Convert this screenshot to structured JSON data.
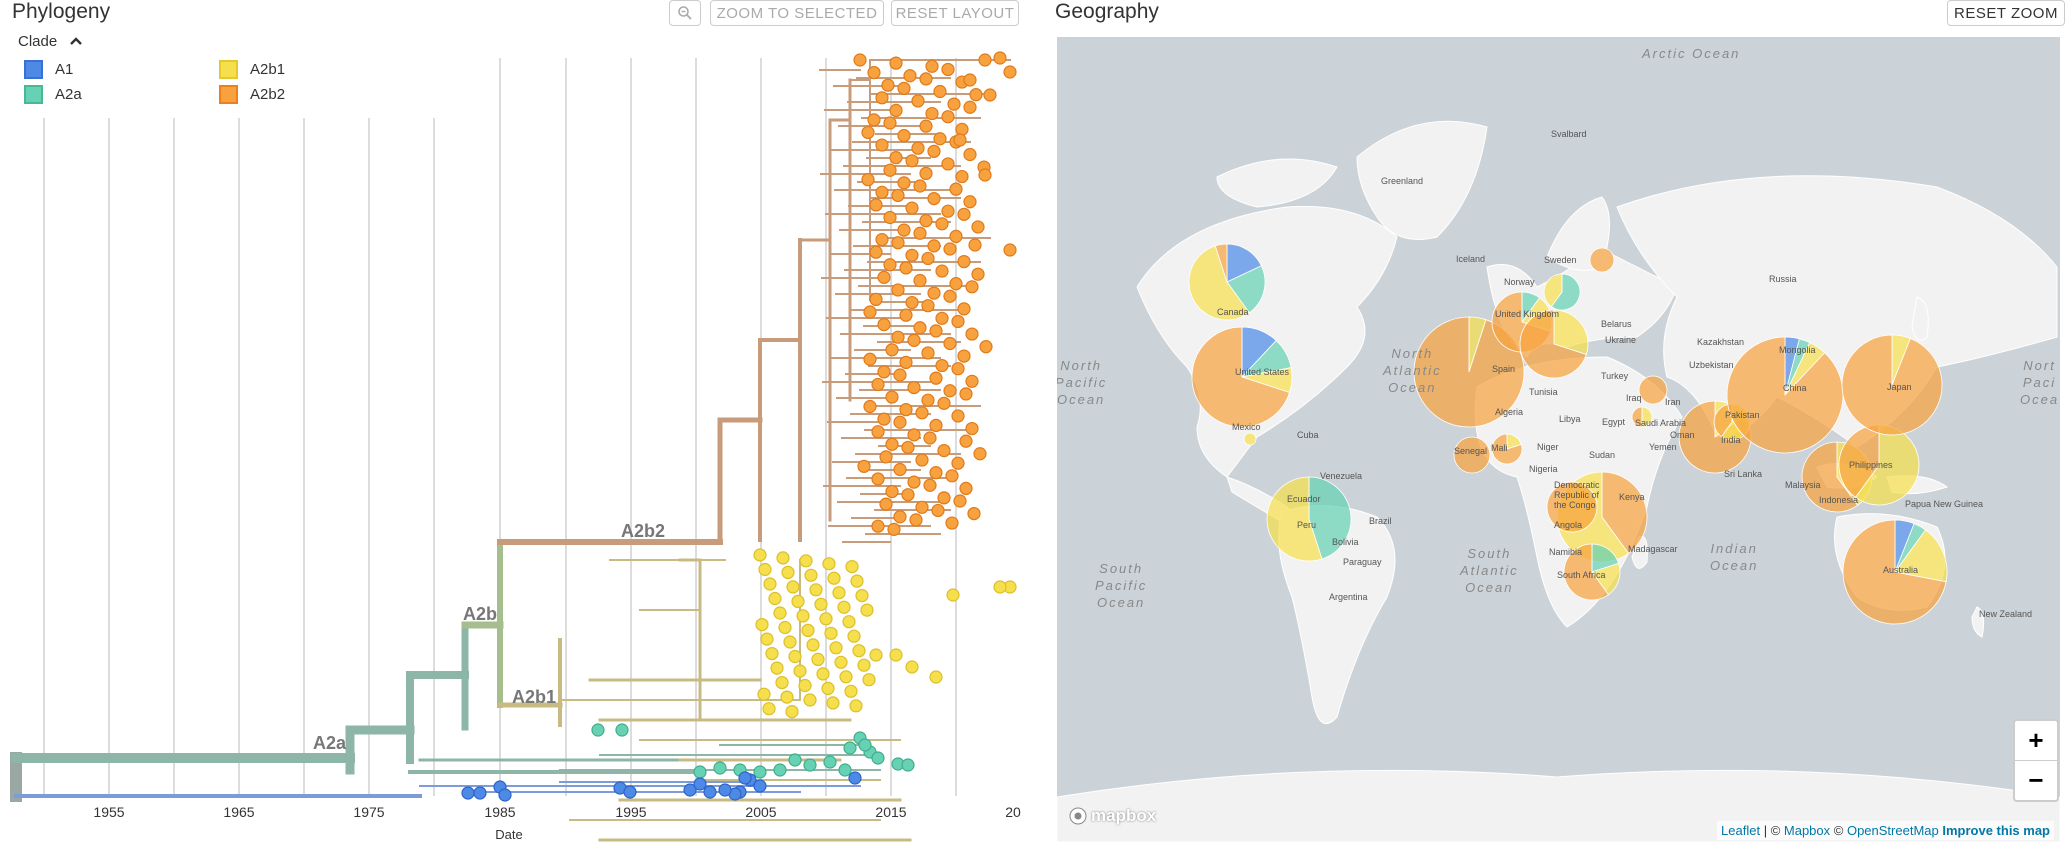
{
  "phylogeny": {
    "title": "Phylogeny",
    "zoom_icon": "magnify-icon",
    "zoom_to_selected": "ZOOM TO SELECTED",
    "reset_layout": "RESET LAYOUT",
    "legend_title": "Clade",
    "legend": [
      {
        "label": "A1",
        "color": "#4c8ae6",
        "border": "#3a6fd8"
      },
      {
        "label": "A2b1",
        "color": "#f5df4d",
        "border": "#e6c829"
      },
      {
        "label": "A2a",
        "color": "#66d1b3",
        "border": "#47b894"
      },
      {
        "label": "A2b2",
        "color": "#f7a23f",
        "border": "#ef7f1a"
      }
    ],
    "axis_ticks": [
      "1955",
      "1965",
      "1975",
      "1985",
      "1995",
      "2005",
      "2015",
      "20"
    ],
    "axis_label": "Date",
    "branch_labels": [
      "A2a",
      "A2b",
      "A2b1",
      "A2b2"
    ]
  },
  "geography": {
    "title": "Geography",
    "reset_zoom": "RESET ZOOM",
    "zoom_in": "+",
    "zoom_out": "−",
    "attribution": {
      "leaflet": "Leaflet",
      "sep": " | © ",
      "mapbox": "Mapbox",
      "copy2": " © ",
      "osm": "OpenStreetMap",
      "improve": "Improve this map"
    },
    "logo": "mapbox",
    "oceans": [
      "Arctic Ocean",
      "North\nPacific\nOcean",
      "North\nAtlantic\nOcean",
      "South\nAtlantic\nOcean",
      "South\nPacific\nOcean",
      "Indian\nOcean",
      "Nort\nPaci\nOcea"
    ],
    "places": [
      "Svalbard",
      "Greenland",
      "Iceland",
      "Sweden",
      "Norway",
      "Russia",
      "Canada",
      "United States",
      "Cuba",
      "Mexico",
      "Venezuela",
      "Ecuador",
      "Peru",
      "Brazil",
      "Bolivia",
      "Paraguay",
      "Argentina",
      "United Kingdom",
      "Spain",
      "Tunisia",
      "Algeria",
      "Libya",
      "Egypt",
      "Niger",
      "Mali",
      "Senegal",
      "Nigeria",
      "Sudan",
      "Kenya",
      "Angola",
      "Namibia",
      "South Africa",
      "Madagascar",
      "Belarus",
      "Ukraine",
      "Turkey",
      "Kazakhstan",
      "Uzbekistan",
      "Iraq",
      "Iran",
      "Saudi Arabia",
      "Yemen",
      "Oman",
      "Pakistan",
      "India",
      "Sri Lanka",
      "Mongolia",
      "China",
      "Japan",
      "Philippines",
      "Malaysia",
      "Indonesia",
      "Papua New Guinea",
      "Australia",
      "New Zealand",
      "Democratic Republic of the Congo"
    ]
  },
  "colors": {
    "A1": "#4c8ae6",
    "A2a": "#66d1b3",
    "A2b1": "#f5df4d",
    "A2b2": "#f7a23f"
  }
}
